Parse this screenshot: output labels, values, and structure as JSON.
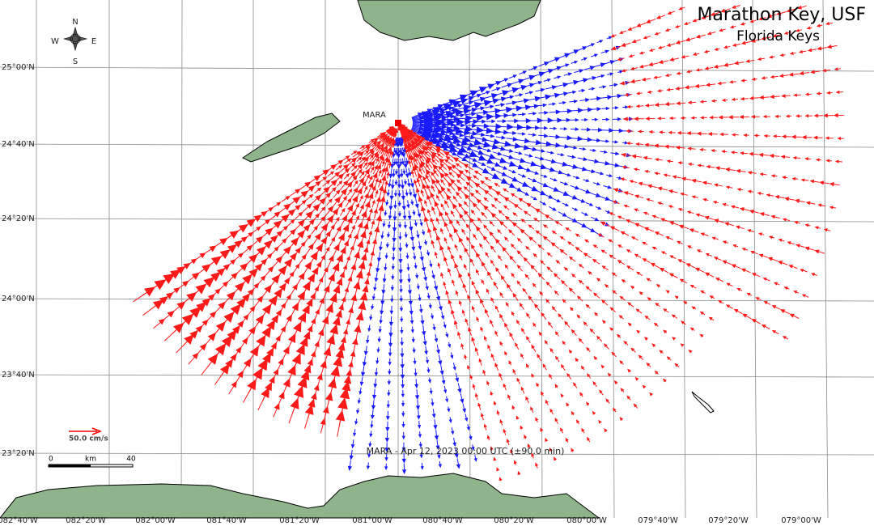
{
  "header": {
    "title": "Marathon Key, USF",
    "subtitle": "Florida Keys"
  },
  "compass": {
    "n": "N",
    "s": "S",
    "e": "E",
    "w": "W"
  },
  "station": {
    "label": "MARA"
  },
  "lat_labels": [
    "25°00'N",
    "24°40'N",
    "24°20'N",
    "24°00'N",
    "23°40'N",
    "23°20'N"
  ],
  "lon_labels": [
    "082°40'W",
    "082°20'W",
    "082°00'W",
    "081°40'W",
    "081°20'W",
    "081°00'W",
    "080°40'W",
    "080°20'W",
    "080°00'W",
    "079°40'W",
    "079°20'W",
    "079°00'W"
  ],
  "legend": {
    "scale_vector": "50.0 cm/s",
    "bar_start": "0",
    "bar_unit": "km",
    "bar_end": "40"
  },
  "caption": "MARA - Apr 12, 2023 00:00 UTC (±90.0 min)"
}
